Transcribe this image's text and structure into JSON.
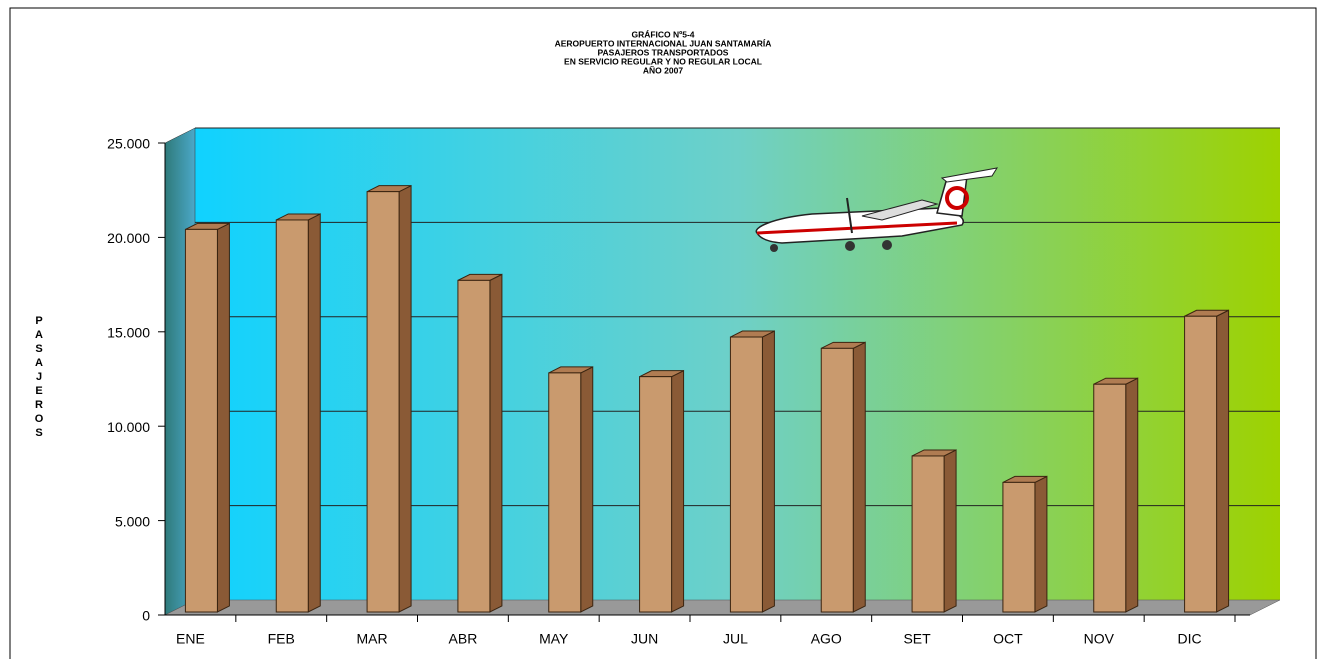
{
  "chart_data": {
    "type": "bar",
    "title": [
      "GRÁFICO Nº5-4",
      "AEROPUERTO INTERNACIONAL JUAN SANTAMARÍA",
      "PASAJEROS TRANSPORTADOS",
      "EN SERVICIO REGULAR Y NO REGULAR LOCAL",
      "AÑO 2007"
    ],
    "y_label": "PASAJEROS",
    "categories": [
      "ENE",
      "FEB",
      "MAR",
      "ABR",
      "MAY",
      "JUN",
      "JUL",
      "AGO",
      "SET",
      "OCT",
      "NOV",
      "DIC"
    ],
    "values": [
      20000,
      20500,
      22000,
      17300,
      12400,
      12200,
      14300,
      13700,
      8000,
      6600,
      11800,
      15400
    ],
    "color": "#c99a6e",
    "ylim": [
      0,
      25000
    ],
    "yticks": [
      0,
      {
        "value": 5000,
        "label": "5.000"
      },
      {
        "value": 10000,
        "label": "10.000"
      },
      {
        "value": 15000,
        "label": "15.000"
      },
      {
        "value": 20000,
        "label": "20.000"
      },
      {
        "value": 25000,
        "label": "25.000"
      }
    ],
    "grid": true
  }
}
